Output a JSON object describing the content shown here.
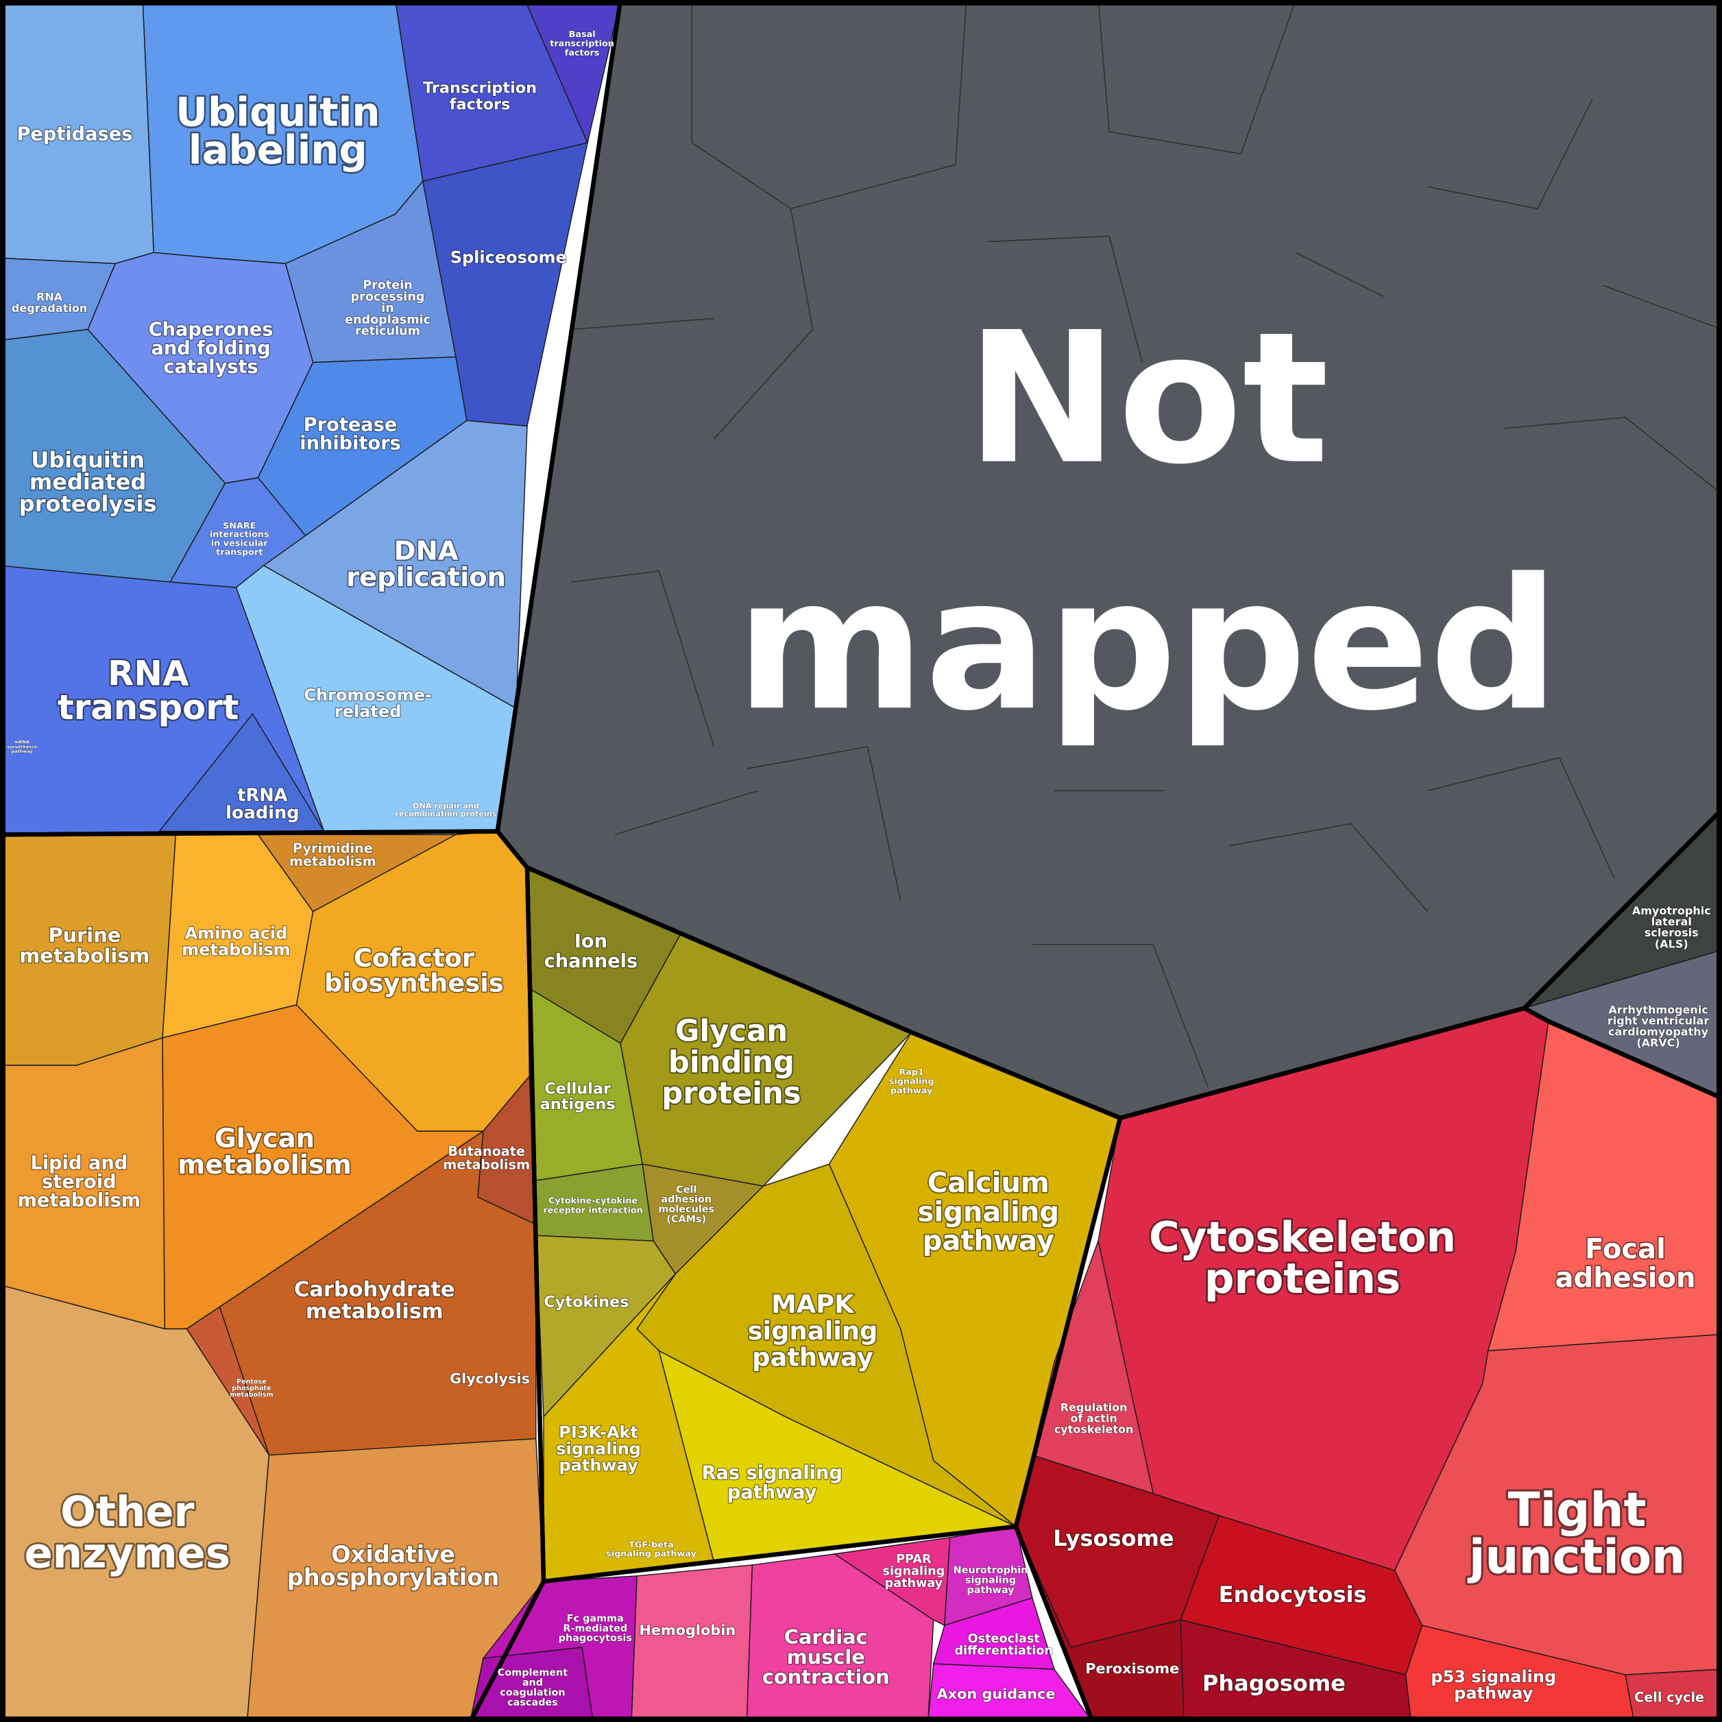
{
  "cells": [
    {
      "lines": [
        "Not",
        "mapped"
      ]
    },
    {
      "lines": [
        "Peptidases"
      ]
    },
    {
      "lines": [
        "Ubiquitin",
        "labeling"
      ]
    },
    {
      "lines": [
        "Basal",
        "transcription",
        "factors"
      ]
    },
    {
      "lines": [
        "Transcription",
        "factors"
      ]
    },
    {
      "lines": [
        "Spliceosome"
      ]
    },
    {
      "lines": [
        "RNA",
        "degradation"
      ]
    },
    {
      "lines": [
        "Chaperones",
        "and folding",
        "catalysts"
      ]
    },
    {
      "lines": [
        "Protein",
        "processing",
        "in",
        "endoplasmic",
        "reticulum"
      ]
    },
    {
      "lines": [
        "Protease",
        "inhibitors"
      ]
    },
    {
      "lines": [
        "Ubiquitin",
        "mediated",
        "proteolysis"
      ]
    },
    {
      "lines": [
        "SNARE",
        "interactions",
        "in vesicular",
        "transport"
      ]
    },
    {
      "lines": [
        "DNA",
        "replication"
      ]
    },
    {
      "lines": [
        "RNA",
        "transport"
      ]
    },
    {
      "lines": [
        "mRNA",
        "surveillance",
        "pathway"
      ]
    },
    {
      "lines": [
        "Chromosome-",
        "related"
      ]
    },
    {
      "lines": [
        "tRNA",
        "loading"
      ]
    },
    {
      "lines": [
        "DNA repair and",
        "recombination proteins"
      ]
    },
    {
      "lines": [
        "Pyrimidine",
        "metabolism"
      ]
    },
    {
      "lines": [
        "Purine",
        "metabolism"
      ]
    },
    {
      "lines": [
        "Amino acid",
        "metabolism"
      ]
    },
    {
      "lines": [
        "Cofactor",
        "biosynthesis"
      ]
    },
    {
      "lines": [
        "Lipid and",
        "steroid",
        "metabolism"
      ]
    },
    {
      "lines": [
        "Glycan",
        "metabolism"
      ]
    },
    {
      "lines": [
        "Butanoate",
        "metabolism"
      ]
    },
    {
      "lines": [
        "Carbohydrate",
        "metabolism"
      ]
    },
    {
      "lines": [
        "Pentose",
        "phosphate",
        "metabolism"
      ]
    },
    {
      "lines": [
        "Glycolysis"
      ]
    },
    {
      "lines": [
        "Other",
        "enzymes"
      ]
    },
    {
      "lines": [
        "Oxidative",
        "phosphorylation"
      ]
    },
    {
      "lines": [
        "Ion",
        "channels"
      ]
    },
    {
      "lines": [
        "Cellular",
        "antigens"
      ]
    },
    {
      "lines": [
        "Glycan",
        "binding",
        "proteins"
      ]
    },
    {
      "lines": [
        "Rap1",
        "signaling",
        "pathway"
      ]
    },
    {
      "lines": [
        "Cytokine-cytokine",
        "receptor interaction"
      ]
    },
    {
      "lines": [
        "Cell",
        "adhesion",
        "molecules",
        "(CAMs)"
      ]
    },
    {
      "lines": [
        "Calcium",
        "signaling",
        "pathway"
      ]
    },
    {
      "lines": [
        "MAPK",
        "signaling",
        "pathway"
      ]
    },
    {
      "lines": [
        "Cytokines"
      ]
    },
    {
      "lines": [
        "PI3K-Akt",
        "signaling",
        "pathway"
      ]
    },
    {
      "lines": [
        "Ras signaling",
        "pathway"
      ]
    },
    {
      "lines": [
        "TGF-beta",
        "signaling pathway"
      ]
    },
    {
      "lines": [
        "Cytoskeleton",
        "proteins"
      ]
    },
    {
      "lines": [
        "Regulation",
        "of actin",
        "cytoskeleton"
      ]
    },
    {
      "lines": [
        "Focal",
        "adhesion"
      ]
    },
    {
      "lines": [
        "Tight",
        "junction"
      ]
    },
    {
      "lines": [
        "Amyotrophic",
        "lateral",
        "sclerosis",
        "(ALS)"
      ]
    },
    {
      "lines": [
        "Arrhythmogenic",
        "right ventricular",
        "cardiomyopathy",
        "(ARVC)"
      ]
    },
    {
      "lines": [
        "Lysosome"
      ]
    },
    {
      "lines": [
        "Endocytosis"
      ]
    },
    {
      "lines": [
        "Peroxisome"
      ]
    },
    {
      "lines": [
        "Phagosome"
      ]
    },
    {
      "lines": [
        "p53 signaling",
        "pathway"
      ]
    },
    {
      "lines": [
        "Cell cycle"
      ]
    },
    {
      "lines": [
        "Fc gamma",
        "R-mediated",
        "phagocytosis"
      ]
    },
    {
      "lines": [
        "Complement",
        "and",
        "coagulation",
        "cascades"
      ]
    },
    {
      "lines": [
        "Hemoglobin"
      ]
    },
    {
      "lines": [
        "Cardiac",
        "muscle",
        "contraction"
      ]
    },
    {
      "lines": [
        "PPAR",
        "signaling",
        "pathway"
      ]
    },
    {
      "lines": [
        "Neurotrophin",
        "signaling",
        "pathway"
      ]
    },
    {
      "lines": [
        "Osteoclast",
        "differentiation"
      ]
    },
    {
      "lines": [
        "Axon guidance"
      ]
    }
  ]
}
